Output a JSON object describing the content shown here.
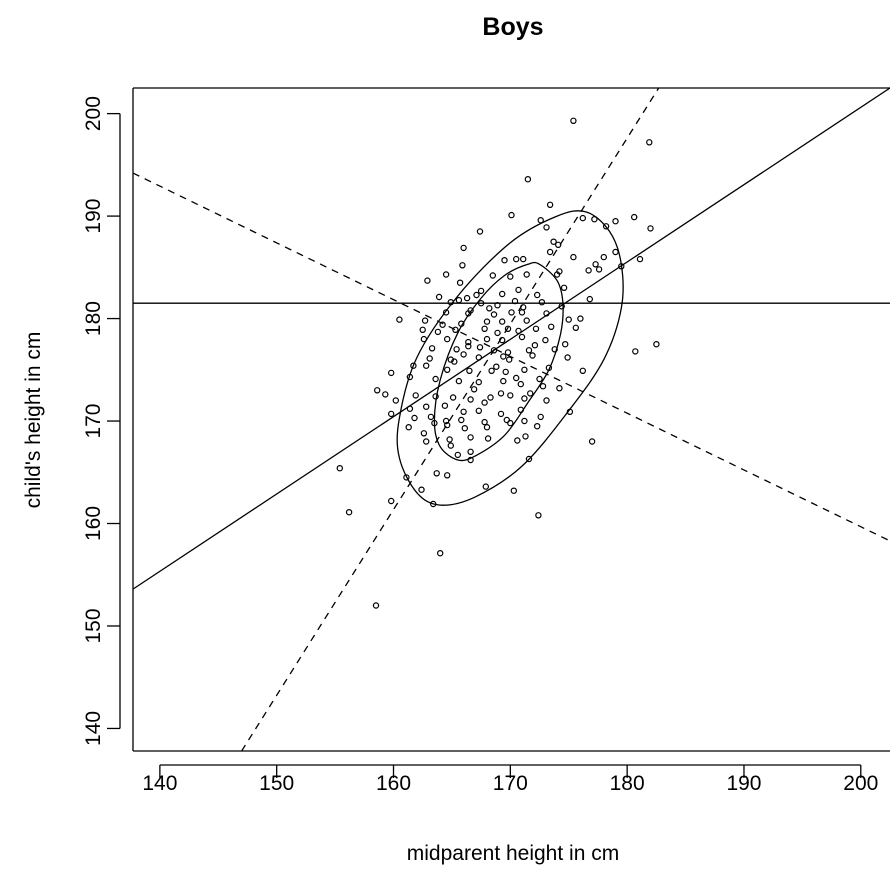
{
  "chart_data": {
    "type": "scatter",
    "title": "Boys",
    "xlabel": "midparent height in cm",
    "ylabel": "child's height in cm",
    "xlim": [
      137.7,
      202.5
    ],
    "ylim": [
      137.8,
      202.5
    ],
    "x_ticks": [
      140,
      150,
      160,
      170,
      180,
      190,
      200
    ],
    "y_ticks": [
      140,
      150,
      160,
      170,
      180,
      190,
      200
    ],
    "grid": false,
    "marker": "open-circle",
    "color": "#000000",
    "horizontal_line_y": 181.5,
    "regression_lines": [
      {
        "style": "solid",
        "x": [
          137.7,
          202.5
        ],
        "y": [
          153.6,
          202.5
        ]
      },
      {
        "style": "dashed",
        "x": [
          147.0,
          182.7
        ],
        "y": [
          137.8,
          202.5
        ]
      },
      {
        "style": "dashed",
        "x": [
          137.7,
          202.5
        ],
        "y": [
          194.2,
          158.3
        ]
      }
    ],
    "ellipses": [
      {
        "points": [
          [
            172.5,
            185.3
          ],
          [
            171.5,
            185.3
          ],
          [
            169.5,
            184.2
          ],
          [
            167.5,
            182.0
          ],
          [
            165.5,
            178.6
          ],
          [
            164.0,
            174.0
          ],
          [
            163.5,
            170.0
          ],
          [
            164.0,
            167.5
          ],
          [
            165.5,
            166.2
          ],
          [
            167.0,
            166.6
          ],
          [
            169.5,
            168.6
          ],
          [
            171.5,
            171.8
          ],
          [
            173.3,
            175.0
          ],
          [
            174.3,
            178.5
          ],
          [
            174.5,
            181.5
          ],
          [
            174.0,
            183.7
          ]
        ]
      },
      {
        "points": [
          [
            176.5,
            190.4
          ],
          [
            174.0,
            190.0
          ],
          [
            170.0,
            187.4
          ],
          [
            165.5,
            182.2
          ],
          [
            162.0,
            176.2
          ],
          [
            160.5,
            170.3
          ],
          [
            160.5,
            166.4
          ],
          [
            162.0,
            163.0
          ],
          [
            164.0,
            161.8
          ],
          [
            167.0,
            162.6
          ],
          [
            171.0,
            165.6
          ],
          [
            175.0,
            171.0
          ],
          [
            178.0,
            176.0
          ],
          [
            179.5,
            181.0
          ],
          [
            179.5,
            185.3
          ],
          [
            178.5,
            188.5
          ]
        ]
      }
    ],
    "points": [
      [
        175.4,
        199.3
      ],
      [
        181.9,
        197.2
      ],
      [
        171.5,
        193.6
      ],
      [
        173.4,
        191.1
      ],
      [
        170.1,
        190.1
      ],
      [
        176.2,
        189.8
      ],
      [
        177.2,
        189.7
      ],
      [
        180.6,
        189.9
      ],
      [
        172.6,
        189.6
      ],
      [
        179.0,
        189.5
      ],
      [
        178.2,
        189.0
      ],
      [
        182.0,
        188.8
      ],
      [
        167.4,
        188.5
      ],
      [
        173.1,
        188.9
      ],
      [
        173.7,
        187.5
      ],
      [
        174.1,
        187.2
      ],
      [
        173.4,
        186.5
      ],
      [
        166.0,
        186.9
      ],
      [
        169.5,
        185.7
      ],
      [
        170.5,
        185.8
      ],
      [
        171.1,
        185.8
      ],
      [
        175.4,
        186.0
      ],
      [
        177.3,
        185.3
      ],
      [
        178.0,
        186.0
      ],
      [
        179.0,
        186.5
      ],
      [
        181.1,
        185.8
      ],
      [
        164.5,
        184.3
      ],
      [
        165.9,
        185.2
      ],
      [
        168.5,
        184.2
      ],
      [
        170.0,
        184.1
      ],
      [
        171.4,
        184.3
      ],
      [
        174.2,
        184.6
      ],
      [
        176.7,
        184.7
      ],
      [
        177.6,
        184.8
      ],
      [
        179.5,
        185.1
      ],
      [
        162.9,
        183.7
      ],
      [
        165.7,
        183.5
      ],
      [
        167.5,
        182.7
      ],
      [
        169.3,
        182.4
      ],
      [
        170.7,
        182.8
      ],
      [
        172.3,
        182.3
      ],
      [
        174.6,
        183.0
      ],
      [
        174.0,
        184.3
      ],
      [
        163.9,
        182.1
      ],
      [
        165.6,
        181.8
      ],
      [
        166.3,
        182.0
      ],
      [
        167.5,
        181.5
      ],
      [
        168.9,
        181.3
      ],
      [
        170.4,
        181.7
      ],
      [
        171.1,
        181.1
      ],
      [
        172.7,
        181.6
      ],
      [
        174.4,
        181.2
      ],
      [
        176.8,
        181.9
      ],
      [
        164.5,
        180.6
      ],
      [
        166.4,
        180.5
      ],
      [
        168.6,
        180.4
      ],
      [
        170.1,
        180.6
      ],
      [
        171.0,
        180.6
      ],
      [
        173.1,
        180.5
      ],
      [
        160.5,
        179.9
      ],
      [
        162.7,
        179.8
      ],
      [
        164.2,
        179.4
      ],
      [
        165.8,
        179.5
      ],
      [
        168.0,
        179.7
      ],
      [
        169.3,
        179.7
      ],
      [
        171.4,
        179.8
      ],
      [
        175.0,
        179.9
      ],
      [
        176.0,
        180.0
      ],
      [
        162.5,
        178.9
      ],
      [
        163.8,
        178.7
      ],
      [
        165.3,
        178.9
      ],
      [
        167.8,
        179.0
      ],
      [
        169.8,
        179.0
      ],
      [
        172.2,
        179.0
      ],
      [
        173.5,
        179.2
      ],
      [
        175.6,
        179.1
      ],
      [
        162.6,
        178.0
      ],
      [
        164.6,
        178.0
      ],
      [
        166.4,
        177.7
      ],
      [
        168.0,
        178.0
      ],
      [
        169.3,
        177.9
      ],
      [
        171.0,
        178.2
      ],
      [
        173.0,
        177.9
      ],
      [
        174.7,
        177.5
      ],
      [
        163.3,
        177.1
      ],
      [
        165.4,
        177.0
      ],
      [
        167.4,
        177.2
      ],
      [
        168.6,
        176.9
      ],
      [
        169.8,
        176.7
      ],
      [
        171.6,
        176.9
      ],
      [
        173.8,
        177.0
      ],
      [
        180.7,
        176.8
      ],
      [
        182.5,
        177.5
      ],
      [
        163.1,
        176.1
      ],
      [
        164.9,
        176.0
      ],
      [
        166.0,
        176.5
      ],
      [
        167.3,
        176.2
      ],
      [
        169.4,
        176.3
      ],
      [
        171.9,
        176.4
      ],
      [
        174.9,
        176.2
      ],
      [
        161.7,
        175.4
      ],
      [
        162.8,
        175.4
      ],
      [
        164.6,
        175.0
      ],
      [
        166.5,
        174.9
      ],
      [
        168.4,
        174.9
      ],
      [
        169.6,
        174.8
      ],
      [
        171.2,
        175.0
      ],
      [
        173.3,
        175.2
      ],
      [
        176.2,
        174.9
      ],
      [
        159.8,
        174.7
      ],
      [
        161.4,
        174.3
      ],
      [
        163.6,
        174.1
      ],
      [
        165.6,
        173.9
      ],
      [
        167.3,
        173.8
      ],
      [
        169.4,
        173.9
      ],
      [
        170.9,
        173.6
      ],
      [
        172.8,
        173.4
      ],
      [
        174.2,
        173.2
      ],
      [
        158.6,
        173.0
      ],
      [
        159.3,
        172.6
      ],
      [
        161.9,
        172.5
      ],
      [
        163.6,
        172.4
      ],
      [
        165.1,
        172.3
      ],
      [
        166.6,
        172.1
      ],
      [
        168.3,
        172.3
      ],
      [
        170.0,
        172.5
      ],
      [
        171.2,
        172.2
      ],
      [
        173.1,
        172.0
      ],
      [
        160.2,
        172.0
      ],
      [
        161.4,
        171.2
      ],
      [
        162.8,
        171.4
      ],
      [
        164.4,
        171.5
      ],
      [
        166.0,
        170.9
      ],
      [
        167.3,
        171.0
      ],
      [
        169.2,
        170.7
      ],
      [
        170.9,
        171.1
      ],
      [
        172.6,
        170.4
      ],
      [
        175.1,
        170.9
      ],
      [
        159.8,
        170.7
      ],
      [
        161.8,
        170.3
      ],
      [
        163.2,
        170.4
      ],
      [
        164.5,
        170.0
      ],
      [
        165.8,
        170.1
      ],
      [
        167.8,
        169.9
      ],
      [
        169.7,
        170.1
      ],
      [
        171.2,
        170.0
      ],
      [
        172.3,
        169.5
      ],
      [
        163.5,
        169.8
      ],
      [
        164.6,
        169.6
      ],
      [
        166.1,
        169.3
      ],
      [
        168.0,
        169.4
      ],
      [
        170.0,
        169.8
      ],
      [
        161.3,
        169.4
      ],
      [
        162.6,
        168.8
      ],
      [
        164.8,
        168.2
      ],
      [
        166.6,
        168.4
      ],
      [
        168.1,
        168.3
      ],
      [
        171.3,
        168.5
      ],
      [
        162.8,
        168.0
      ],
      [
        164.9,
        167.6
      ],
      [
        170.6,
        168.1
      ],
      [
        177.0,
        168.0
      ],
      [
        165.5,
        166.7
      ],
      [
        166.6,
        166.2
      ],
      [
        171.6,
        166.3
      ],
      [
        155.4,
        165.4
      ],
      [
        161.1,
        164.5
      ],
      [
        163.7,
        164.9
      ],
      [
        164.6,
        164.7
      ],
      [
        166.6,
        167.0
      ],
      [
        162.4,
        163.3
      ],
      [
        167.9,
        163.6
      ],
      [
        170.3,
        163.2
      ],
      [
        156.2,
        161.1
      ],
      [
        159.8,
        162.2
      ],
      [
        163.4,
        161.9
      ],
      [
        172.4,
        160.8
      ],
      [
        164.0,
        157.1
      ],
      [
        158.5,
        152.0
      ],
      [
        166.6,
        180.8
      ],
      [
        167.1,
        182.3
      ],
      [
        168.2,
        181.0
      ],
      [
        169.9,
        176.0
      ],
      [
        168.8,
        175.3
      ],
      [
        170.5,
        174.2
      ],
      [
        166.9,
        173.1
      ],
      [
        167.8,
        171.8
      ],
      [
        169.2,
        172.7
      ],
      [
        165.2,
        175.8
      ],
      [
        170.7,
        178.8
      ],
      [
        172.1,
        177.4
      ],
      [
        171.7,
        172.7
      ],
      [
        164.9,
        181.6
      ],
      [
        166.4,
        177.3
      ],
      [
        172.5,
        174.1
      ],
      [
        168.9,
        178.6
      ]
    ]
  }
}
